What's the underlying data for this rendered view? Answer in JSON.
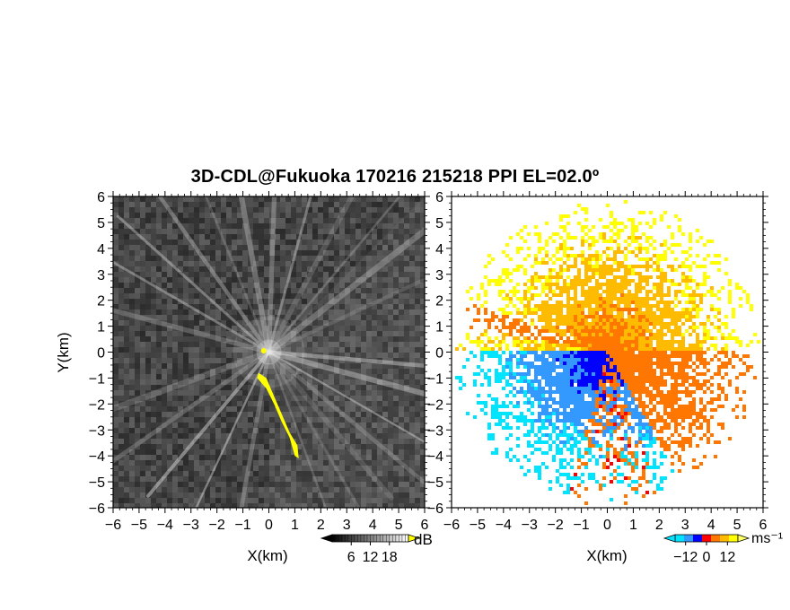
{
  "title": "3D-CDL@Fukuoka 170216 215218 PPI EL=02.0º",
  "chart_data": [
    {
      "type": "heatmap",
      "panel": "left",
      "title": "",
      "xlabel": "X(km)",
      "ylabel": "Y(km)",
      "xlim": [
        -6,
        6
      ],
      "ylim": [
        -6,
        6
      ],
      "xticks": [
        "−6",
        "−5",
        "−4",
        "−3",
        "−2",
        "−1",
        "0",
        "1",
        "2",
        "3",
        "4",
        "5",
        "6"
      ],
      "yticks": [
        "−6",
        "−5",
        "−4",
        "−3",
        "−2",
        "−1",
        "0",
        "1",
        "2",
        "3",
        "4",
        "5",
        "6"
      ],
      "colorbar": {
        "unit": "dB",
        "ticks": [
          "6",
          "12",
          "18"
        ],
        "tick_values": [
          6,
          12,
          18
        ],
        "range": [
          0,
          24
        ],
        "colors": [
          "#000000",
          "#ffffff"
        ],
        "over_color": "#ffff00",
        "under_color": "#000000"
      },
      "quantity": "signal intensity (dB)",
      "features": {
        "background_level_db": 4,
        "ray_directions_deg": [
          25,
          38,
          50,
          62,
          75,
          88,
          100,
          112,
          125,
          138,
          150,
          165,
          200,
          215,
          230,
          245,
          260,
          290,
          300,
          310,
          320,
          330,
          345,
          355
        ],
        "saturated_region": {
          "color": "#ffff00",
          "points_km": [
            [
              -0.4,
              -0.8
            ],
            [
              -0.1,
              -1.0
            ],
            [
              0.2,
              -1.7
            ],
            [
              0.5,
              -2.4
            ],
            [
              0.8,
              -3.1
            ],
            [
              1.1,
              -3.6
            ],
            [
              1.15,
              -4.1
            ],
            [
              1.0,
              -4.0
            ],
            [
              0.8,
              -3.3
            ],
            [
              0.5,
              -2.7
            ],
            [
              0.2,
              -2.0
            ],
            [
              -0.1,
              -1.4
            ],
            [
              -0.45,
              -1.0
            ]
          ]
        }
      }
    },
    {
      "type": "heatmap",
      "panel": "right",
      "title": "",
      "xlabel": "X(km)",
      "ylabel": "",
      "xlim": [
        -6,
        6
      ],
      "ylim": [
        -6,
        6
      ],
      "xticks": [
        "−6",
        "−5",
        "−4",
        "−3",
        "−2",
        "−1",
        "0",
        "1",
        "2",
        "3",
        "4",
        "5",
        "6"
      ],
      "yticks": [
        "−6",
        "−5",
        "−4",
        "−3",
        "−2",
        "−1",
        "0",
        "1",
        "2",
        "3",
        "4",
        "5",
        "6"
      ],
      "colorbar": {
        "unit": "ms⁻¹",
        "ticks": [
          "−12",
          "0",
          "12"
        ],
        "tick_values": [
          -12,
          0,
          12
        ],
        "range": [
          -18,
          18
        ],
        "colors": [
          "#00e5ff",
          "#3399ff",
          "#0000ff",
          "#ff0000",
          "#ff7700",
          "#ffbb00",
          "#ffff00"
        ],
        "over_color": "#ffff66",
        "under_color": "#00e5ff"
      },
      "quantity": "Doppler velocity (m/s)",
      "features": {
        "approaching_sector_deg": [
          180,
          300
        ],
        "receding_sector_deg": [
          300,
          360
        ],
        "receding_sector_2_deg": [
          0,
          170
        ],
        "max_range_km": 5.9
      }
    }
  ]
}
